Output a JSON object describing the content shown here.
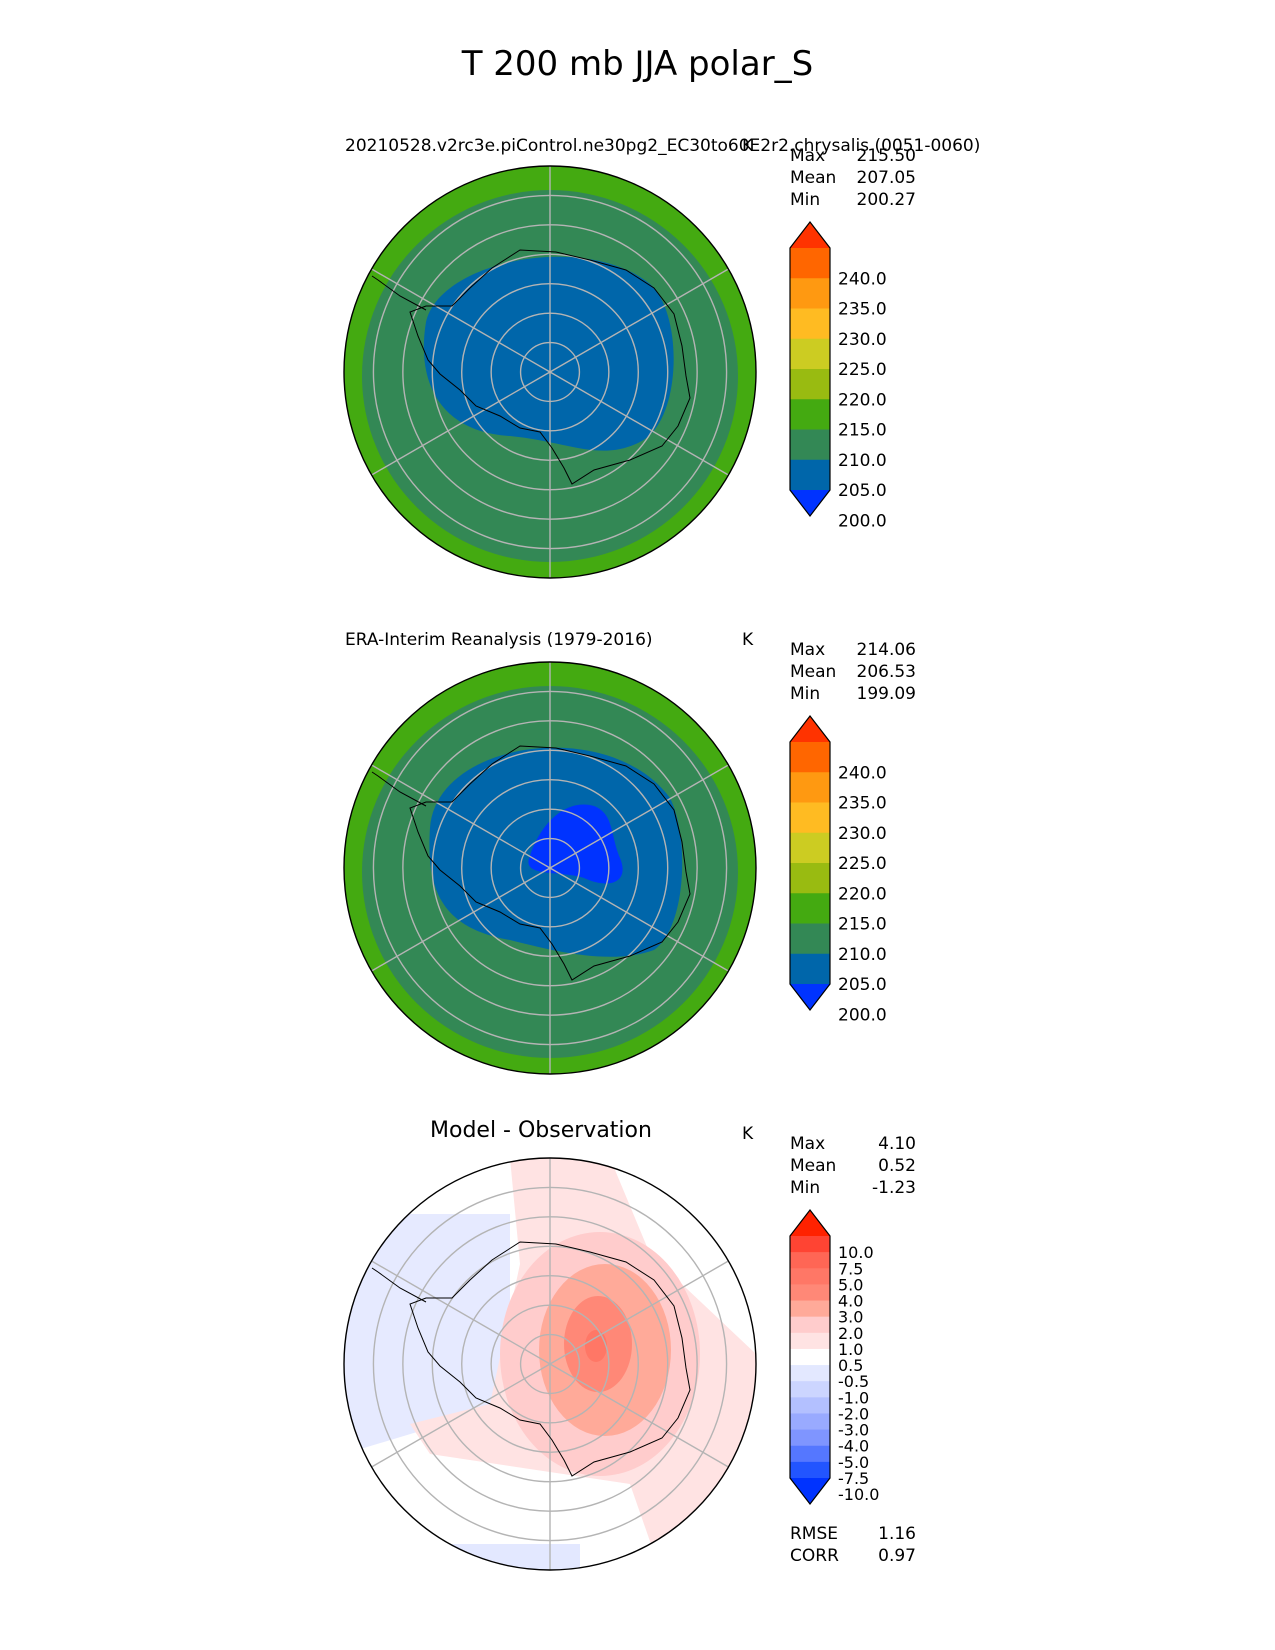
{
  "figure": {
    "title": "T 200 mb JJA polar_S"
  },
  "chart_data": [
    {
      "type": "heatmap",
      "projection": "south-polar-stereographic",
      "title": "20210528.v2rc3e.piControl.ne30pg2_EC30to60E2r2.chrysalis (0051-0060)",
      "units": "K",
      "stats": {
        "Max": "215.50",
        "Mean": "207.05",
        "Min": "200.27"
      },
      "colorbar": {
        "levels": [
          "240.0",
          "235.0",
          "230.0",
          "225.0",
          "220.0",
          "215.0",
          "210.0",
          "205.0",
          "200.0"
        ],
        "colors": [
          "#ff3300",
          "#ff6600",
          "#ff9911",
          "#ffbb22",
          "#cccc22",
          "#99bb11",
          "#44aa11",
          "#338855",
          "#0066aa",
          "#0033ff"
        ],
        "extend": "both"
      },
      "field": {
        "outer_ring": "210-215",
        "middle_ring": "205-210",
        "core": "200-205"
      },
      "grid": true
    },
    {
      "type": "heatmap",
      "projection": "south-polar-stereographic",
      "title": "ERA-Interim Reanalysis (1979-2016)",
      "units": "K",
      "stats": {
        "Max": "214.06",
        "Mean": "206.53",
        "Min": "199.09"
      },
      "colorbar": {
        "levels": [
          "240.0",
          "235.0",
          "230.0",
          "225.0",
          "220.0",
          "215.0",
          "210.0",
          "205.0",
          "200.0"
        ],
        "colors": [
          "#ff3300",
          "#ff6600",
          "#ff9911",
          "#ffbb22",
          "#cccc22",
          "#99bb11",
          "#44aa11",
          "#338855",
          "#0066aa",
          "#0033ff"
        ],
        "extend": "both"
      },
      "field": {
        "outer_ring": "210-215",
        "middle_ring": "205-210",
        "core": "200-205",
        "cold_spot": "<200"
      },
      "grid": true
    },
    {
      "type": "heatmap",
      "projection": "south-polar-stereographic",
      "title": "Model - Observation",
      "units": "K",
      "stats": {
        "Max": "4.10",
        "Mean": "0.52",
        "Min": "-1.23"
      },
      "colorbar": {
        "levels": [
          "10.0",
          "7.5",
          "5.0",
          "4.0",
          "3.0",
          "2.0",
          "1.0",
          "0.5",
          "-0.5",
          "-1.0",
          "-2.0",
          "-3.0",
          "-4.0",
          "-5.0",
          "-7.5",
          "-10.0"
        ],
        "colors": [
          "#ff2200",
          "#ff4433",
          "#ff6655",
          "#ff7766",
          "#ff8877",
          "#ffaa99",
          "#ffcccc",
          "#ffe3e3",
          "#ffffff",
          "#e3e8ff",
          "#ccd5ff",
          "#b3c0ff",
          "#99aaff",
          "#7f95ff",
          "#5577ff",
          "#2255ff",
          "#0033ff"
        ],
        "extend": "both"
      },
      "grid": true,
      "metrics": {
        "RMSE": "1.16",
        "CORR": "0.97"
      }
    }
  ]
}
